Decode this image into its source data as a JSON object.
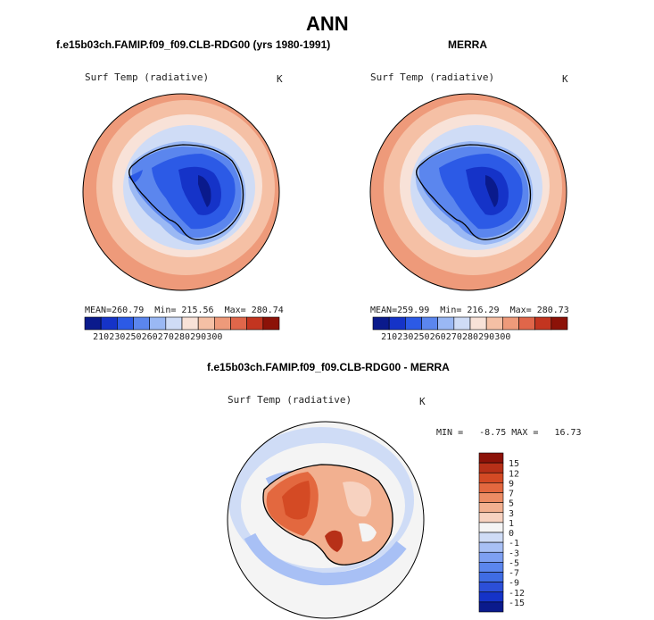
{
  "title": "ANN",
  "panels": [
    {
      "heading": "f.e15b03ch.FAMIP.f09_f09.CLB-RDG00 (yrs 1980-1991)",
      "variable": "Surf Temp (radiative)",
      "units": "K",
      "stats": {
        "mean_label": "MEAN=",
        "mean": "260.79",
        "min_label": "Min=",
        "min": "215.56",
        "max_label": "Max=",
        "max": "280.74"
      }
    },
    {
      "heading": "MERRA",
      "variable": "Surf Temp (radiative)",
      "units": "K",
      "stats": {
        "mean_label": "MEAN=",
        "mean": "259.99",
        "min_label": "Min=",
        "min": "216.29",
        "max_label": "Max=",
        "max": "280.73"
      }
    },
    {
      "heading": "f.e15b03ch.FAMIP.f09_f09.CLB-RDG00 - MERRA",
      "variable": "Surf Temp (radiative)",
      "units": "K",
      "stats": {
        "text": "MIN =   -8.75 MAX =   16.73"
      }
    }
  ],
  "colors": {
    "abs_scale": [
      "#0a1a8c",
      "#1533c8",
      "#2c5ae6",
      "#5b86ee",
      "#9ab8f4",
      "#cfdcf6",
      "#f8e2d8",
      "#f5c0a5",
      "#ee9a7a",
      "#e0664a",
      "#c33520",
      "#8c1208"
    ],
    "diff_scale": [
      "#0a1a8c",
      "#1533c8",
      "#2c4fd8",
      "#3f6ce4",
      "#5b86ee",
      "#7ea0f2",
      "#a8c0f5",
      "#cfdcf6",
      "#f4f4f4",
      "#f7d2c0",
      "#f2b090",
      "#ec8c64",
      "#e3683f",
      "#d44a24",
      "#b73018",
      "#8c1208"
    ]
  },
  "chart_data": [
    {
      "type": "heatmap",
      "projection": "south polar stereographic",
      "title": "f.e15b03ch.FAMIP.f09_f09.CLB-RDG00 (yrs 1980-1991)",
      "variable": "Surf Temp (radiative)",
      "units": "K",
      "colorbar_levels": [
        210,
        230,
        250,
        260,
        270,
        280,
        290,
        300
      ],
      "mean": 260.79,
      "min": 215.56,
      "max": 280.74
    },
    {
      "type": "heatmap",
      "projection": "south polar stereographic",
      "title": "MERRA",
      "variable": "Surf Temp (radiative)",
      "units": "K",
      "colorbar_levels": [
        210,
        230,
        250,
        260,
        270,
        280,
        290,
        300
      ],
      "mean": 259.99,
      "min": 216.29,
      "max": 280.73
    },
    {
      "type": "heatmap",
      "projection": "south polar stereographic",
      "title": "f.e15b03ch.FAMIP.f09_f09.CLB-RDG00 - MERRA",
      "variable": "Surf Temp (radiative)",
      "units": "K",
      "colorbar_levels": [
        15,
        12,
        9,
        7,
        5,
        3,
        1,
        0,
        -1,
        -3,
        -5,
        -7,
        -9,
        -12,
        -15
      ],
      "min": -8.75,
      "max": 16.73
    }
  ]
}
